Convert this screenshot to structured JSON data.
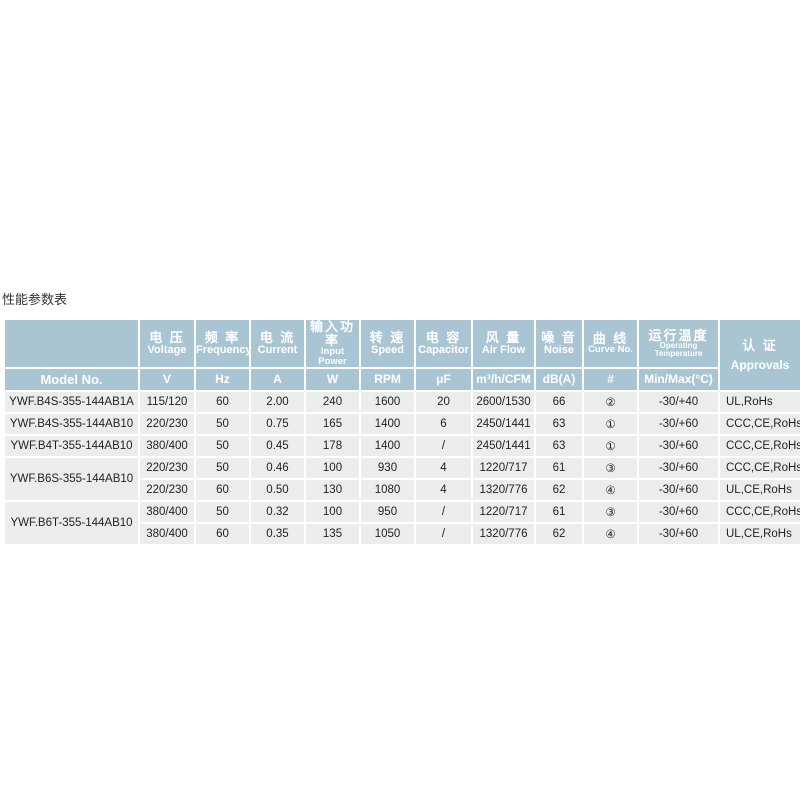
{
  "title": "性能参数表",
  "header": {
    "model": "Model No.",
    "columns": [
      {
        "zh": "电 压",
        "en": "Voltage",
        "unit": "V"
      },
      {
        "zh": "频 率",
        "en": "Frequency",
        "unit": "Hz"
      },
      {
        "zh": "电 流",
        "en": "Current",
        "unit": "A"
      },
      {
        "zh": "输入功率",
        "en": "Input Power",
        "unit": "W"
      },
      {
        "zh": "转 速",
        "en": "Speed",
        "unit": "RPM"
      },
      {
        "zh": "电 容",
        "en": "Capacitor",
        "unit": "μF"
      },
      {
        "zh": "风 量",
        "en": "Air Flow",
        "unit": "m³/h/CFM"
      },
      {
        "zh": "噪 音",
        "en": "Noise",
        "unit": "dB(A)"
      },
      {
        "zh": "曲 线",
        "en": "Curve No.",
        "unit": "#"
      },
      {
        "zh": "运行温度",
        "en": "Operating Temperature",
        "unit": "Min/Max(°C)"
      }
    ],
    "approvals": {
      "zh": "认 证",
      "en": "Approvals"
    }
  },
  "models": [
    "YWF.B4S-355-144AB1A",
    "YWF.B4S-355-144AB10",
    "YWF.B4T-355-144AB10",
    "YWF.B6S-355-144AB10",
    "YWF.B6T-355-144AB10"
  ],
  "rows": [
    [
      "115/120",
      "60",
      "2.00",
      "240",
      "1600",
      "20",
      "2600/1530",
      "66",
      "②",
      "-30/+40",
      "UL,RoHs"
    ],
    [
      "220/230",
      "50",
      "0.75",
      "165",
      "1400",
      "6",
      "2450/1441",
      "63",
      "①",
      "-30/+60",
      "CCC,CE,RoHs"
    ],
    [
      "380/400",
      "50",
      "0.45",
      "178",
      "1400",
      "/",
      "2450/1441",
      "63",
      "①",
      "-30/+60",
      "CCC,CE,RoHs"
    ],
    [
      "220/230",
      "50",
      "0.46",
      "100",
      "930",
      "4",
      "1220/717",
      "61",
      "③",
      "-30/+60",
      "CCC,CE,RoHs"
    ],
    [
      "220/230",
      "60",
      "0.50",
      "130",
      "1080",
      "4",
      "1320/776",
      "62",
      "④",
      "-30/+60",
      "UL,CE,RoHs"
    ],
    [
      "380/400",
      "50",
      "0.32",
      "100",
      "950",
      "/",
      "1220/717",
      "61",
      "③",
      "-30/+60",
      "CCC,CE,RoHs"
    ],
    [
      "380/400",
      "60",
      "0.35",
      "135",
      "1050",
      "/",
      "1320/776",
      "62",
      "④",
      "-30/+60",
      "UL,CE,RoHs"
    ]
  ]
}
